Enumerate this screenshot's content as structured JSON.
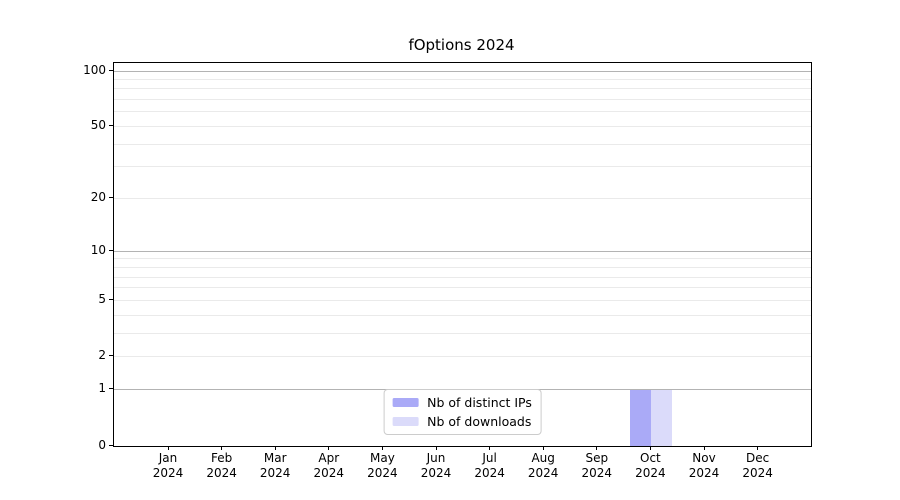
{
  "title": "fOptions 2024",
  "chart_data": {
    "type": "bar",
    "title": "fOptions 2024",
    "categories": [
      "Jan 2024",
      "Feb 2024",
      "Mar 2024",
      "Apr 2024",
      "May 2024",
      "Jun 2024",
      "Jul 2024",
      "Aug 2024",
      "Sep 2024",
      "Oct 2024",
      "Nov 2024",
      "Dec 2024"
    ],
    "x_tick_line1": [
      "Jan",
      "Feb",
      "Mar",
      "Apr",
      "May",
      "Jun",
      "Jul",
      "Aug",
      "Sep",
      "Oct",
      "Nov",
      "Dec"
    ],
    "x_tick_line2": "2024",
    "series": [
      {
        "name": "Nb of distinct IPs",
        "color": "#aaaaf7",
        "values": [
          0,
          0,
          0,
          0,
          0,
          0,
          0,
          0,
          0,
          1,
          0,
          0
        ]
      },
      {
        "name": "Nb of downloads",
        "color": "#dbdbfa",
        "values": [
          0,
          0,
          0,
          0,
          0,
          0,
          0,
          0,
          0,
          1,
          0,
          0
        ]
      }
    ],
    "xlabel": "",
    "ylabel": "",
    "yscale": "log1p",
    "ylim": [
      0,
      110
    ],
    "y_tick_values": [
      0,
      1,
      2,
      5,
      10,
      20,
      50,
      100
    ],
    "y_tick_labels": [
      "0",
      "1",
      "2",
      "5",
      "10",
      "20",
      "50",
      "100"
    ],
    "major_gridline_values": [
      1,
      10,
      100
    ],
    "minor_gridline_values": [
      2,
      3,
      4,
      5,
      6,
      7,
      8,
      9,
      20,
      30,
      40,
      50,
      60,
      70,
      80,
      90
    ],
    "grid": true,
    "legend_position": "lower center"
  },
  "legend": {
    "items": [
      {
        "label": "Nb of distinct IPs",
        "color": "#aaaaf7"
      },
      {
        "label": "Nb of downloads",
        "color": "#dbdbfa"
      }
    ]
  },
  "colors": {
    "bar_distinct_ips": "#aaaaf7",
    "bar_downloads": "#dbdbfa",
    "major_grid": "#b3b3b3",
    "minor_grid": "#eaeaea",
    "spine": "#000000",
    "background": "#ffffff",
    "legend_border": "#cccccc"
  }
}
